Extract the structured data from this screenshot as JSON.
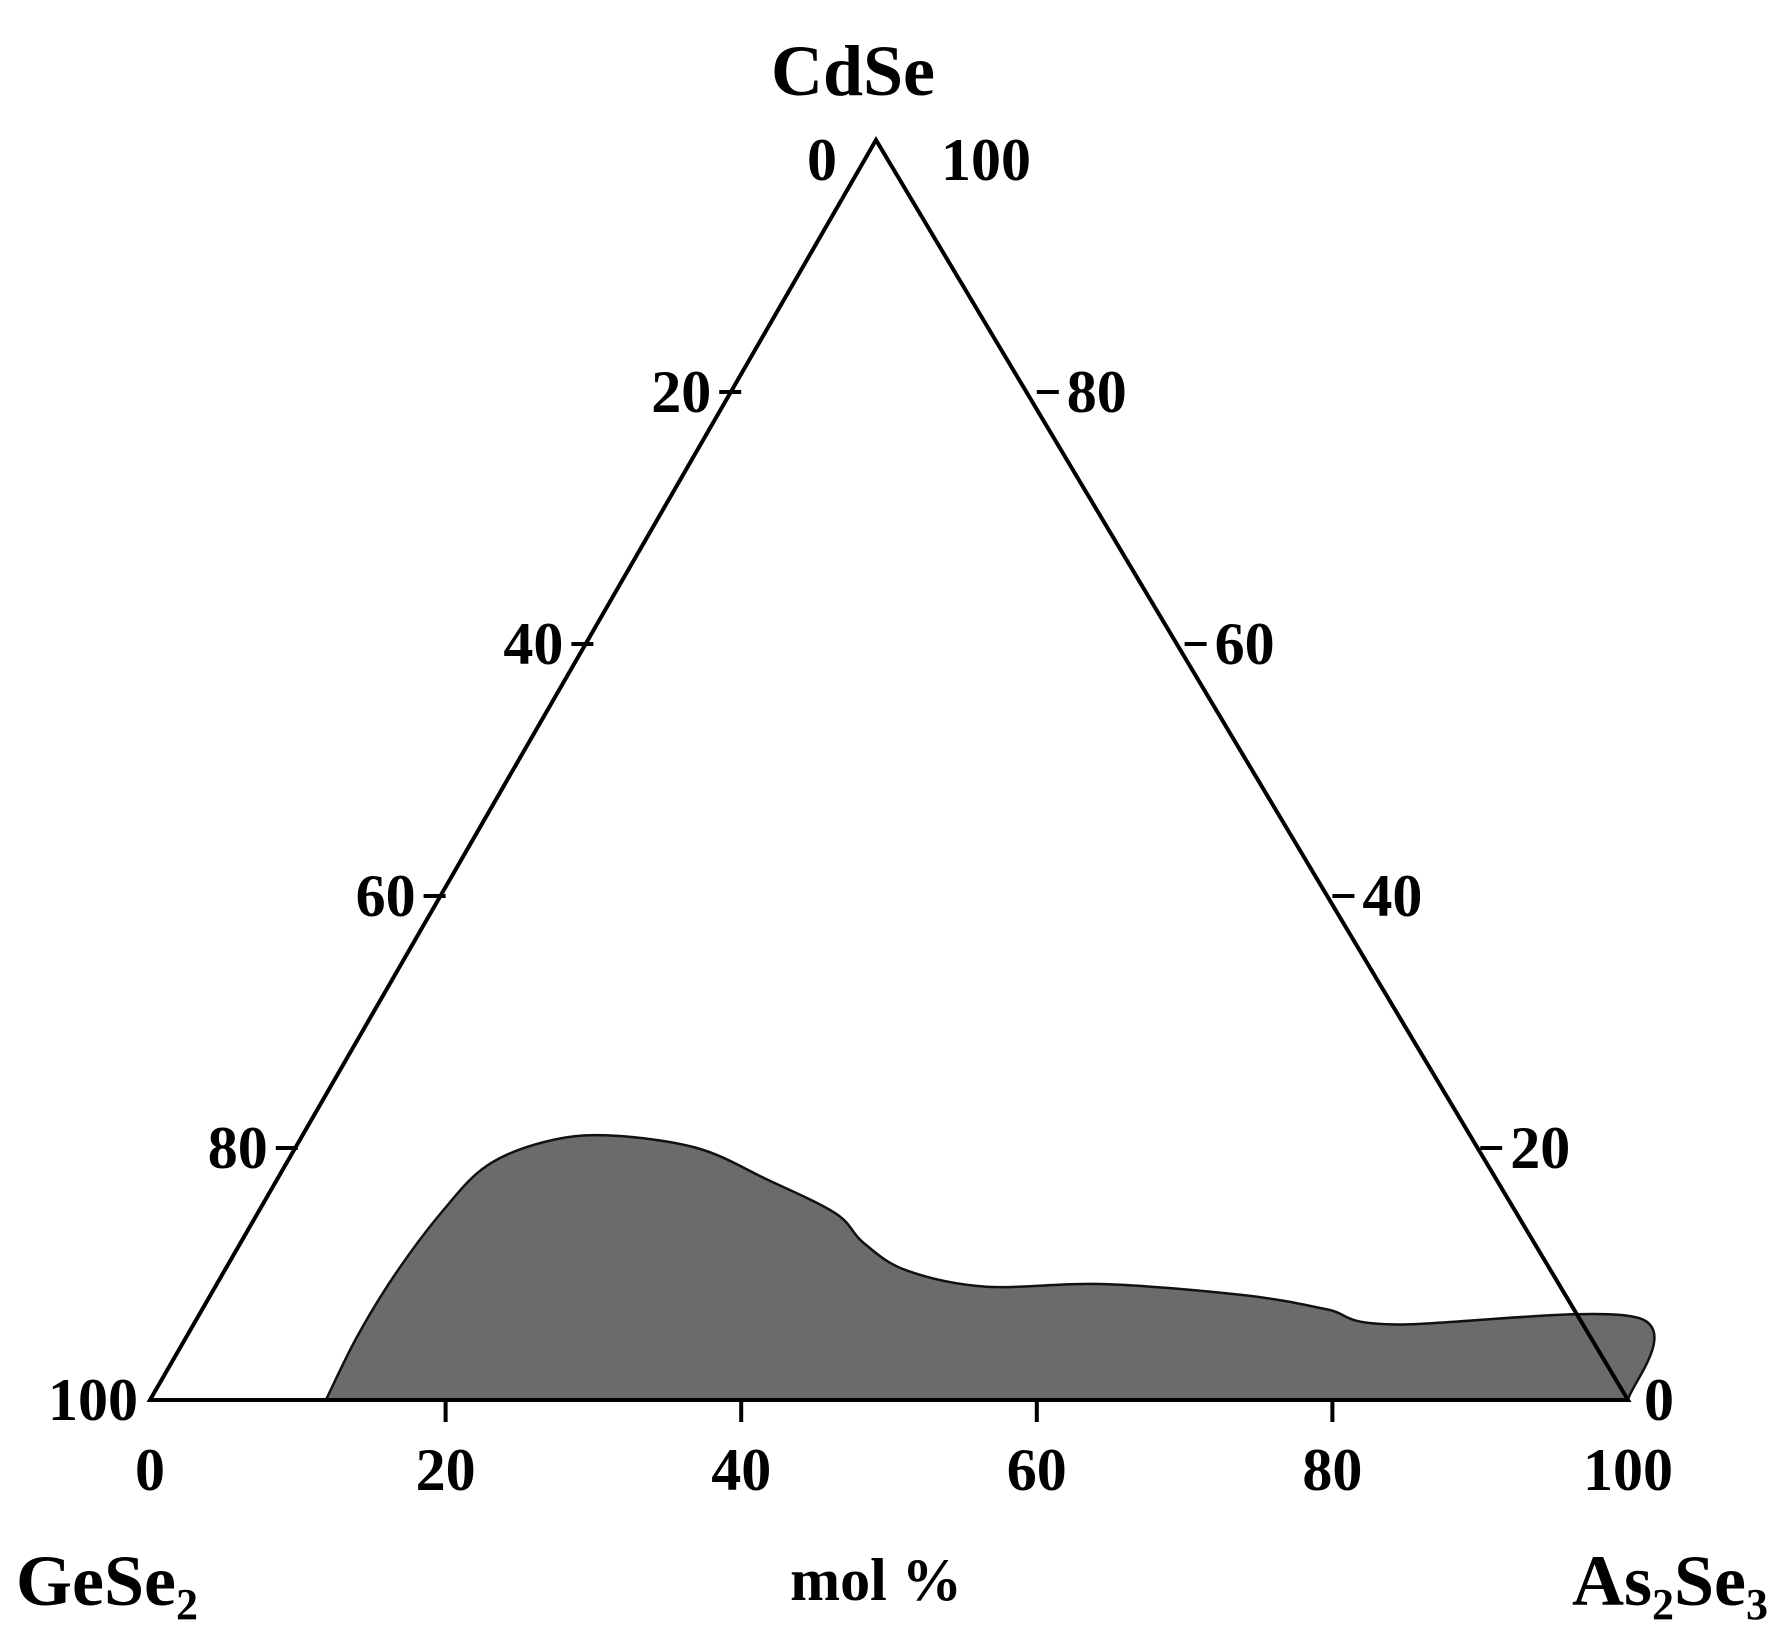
{
  "chart_data": {
    "type": "ternary",
    "components": {
      "top": {
        "main": "CdSe",
        "sub": "",
        "tail": "",
        "sub2": ""
      },
      "left": {
        "main": "GeSe",
        "sub": "2",
        "tail": "",
        "sub2": ""
      },
      "right": {
        "main": "As",
        "sub": "2",
        "tail": "Se",
        "sub2": "3"
      }
    },
    "unit_label": "mol %",
    "bottom_axis": {
      "component": "As2Se3",
      "ticks": [
        0,
        20,
        40,
        60,
        80,
        100
      ]
    },
    "left_axis": {
      "component": "GeSe2",
      "ticks": [
        0,
        20,
        40,
        60,
        80,
        100
      ]
    },
    "right_axis": {
      "component": "CdSe",
      "ticks": [
        0,
        20,
        40,
        60,
        80,
        100
      ]
    },
    "region_color": "#6b6b6b",
    "glass_region": {
      "description_axis_units": "points as [As2Se3 mol %, CdSe mol %]",
      "points": [
        [
          11.9,
          0
        ],
        [
          11.5,
          5
        ],
        [
          11.6,
          10
        ],
        [
          12.3,
          15
        ],
        [
          13.5,
          18.6
        ],
        [
          16.5,
          20.5
        ],
        [
          20.5,
          21.0
        ],
        [
          27.0,
          20.0
        ],
        [
          33.0,
          17.5
        ],
        [
          39.0,
          14.8
        ],
        [
          42.0,
          12.5
        ],
        [
          46.0,
          10.3
        ],
        [
          52.0,
          9.0
        ],
        [
          60.0,
          9.2
        ],
        [
          70.0,
          8.3
        ],
        [
          76.0,
          7.2
        ],
        [
          81.0,
          6.0
        ],
        [
          97.5,
          6.5
        ],
        [
          100.0,
          0
        ]
      ]
    }
  }
}
